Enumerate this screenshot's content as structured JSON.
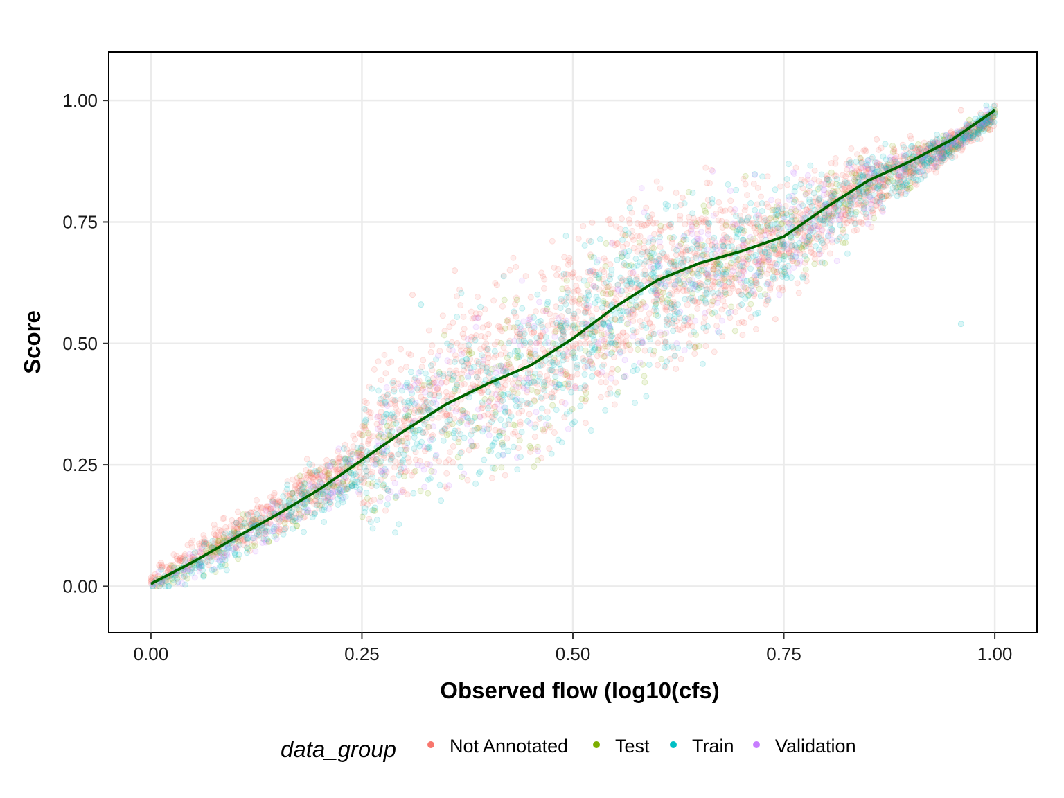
{
  "chart_data": {
    "type": "scatter",
    "title": "",
    "xlabel": "Observed flow (log10(cfs)",
    "ylabel": "Score",
    "xlim": [
      -0.05,
      1.05
    ],
    "ylim": [
      -0.095,
      1.1
    ],
    "x_ticks": [
      0,
      0.25,
      0.5,
      0.75,
      1
    ],
    "x_tick_labels": [
      "0.00",
      "0.25",
      "0.50",
      "0.75",
      "1.00"
    ],
    "y_ticks": [
      0,
      0.25,
      0.5,
      0.75,
      1
    ],
    "y_tick_labels": [
      "0.00",
      "0.25",
      "0.50",
      "0.75",
      "1.00"
    ],
    "grid": true,
    "legend": {
      "title": "data_group",
      "position": "bottom",
      "entries": [
        {
          "name": "Not Annotated",
          "color": "#F8766D"
        },
        {
          "name": "Test",
          "color": "#7CAE00"
        },
        {
          "name": "Train",
          "color": "#00BFC4"
        },
        {
          "name": "Validation",
          "color": "#C77CFF"
        }
      ]
    },
    "point_alpha": 0.15,
    "series": [
      {
        "name": "Not Annotated",
        "color": "#F8766D",
        "x": [
          0.0,
          0.02,
          0.05,
          0.08,
          0.1,
          0.12,
          0.15,
          0.18,
          0.2,
          0.22,
          0.25,
          0.27,
          0.3,
          0.32,
          0.35,
          0.38,
          0.4,
          0.42,
          0.45,
          0.48,
          0.5,
          0.52,
          0.55,
          0.58,
          0.6,
          0.62,
          0.65,
          0.68,
          0.7,
          0.72,
          0.75,
          0.78,
          0.8,
          0.82,
          0.85,
          0.88,
          0.9,
          0.92,
          0.95,
          0.97,
          0.99,
          1.0,
          0.31,
          0.36,
          0.41,
          0.57,
          0.63,
          0.74,
          0.86,
          0.96
        ],
        "y": [
          0.01,
          0.03,
          0.06,
          0.09,
          0.1,
          0.13,
          0.17,
          0.19,
          0.22,
          0.24,
          0.27,
          0.31,
          0.34,
          0.39,
          0.42,
          0.44,
          0.47,
          0.45,
          0.5,
          0.49,
          0.52,
          0.5,
          0.55,
          0.58,
          0.6,
          0.58,
          0.62,
          0.6,
          0.64,
          0.66,
          0.7,
          0.75,
          0.78,
          0.8,
          0.83,
          0.86,
          0.88,
          0.9,
          0.92,
          0.95,
          0.97,
          0.99,
          0.6,
          0.65,
          0.62,
          0.72,
          0.8,
          0.55,
          0.92,
          0.98
        ]
      },
      {
        "name": "Test",
        "color": "#7CAE00",
        "x": [
          0.02,
          0.1,
          0.2,
          0.28,
          0.33,
          0.38,
          0.45,
          0.52,
          0.6,
          0.68,
          0.75,
          0.82,
          0.9,
          0.97,
          1.0
        ],
        "y": [
          0.02,
          0.11,
          0.2,
          0.33,
          0.42,
          0.48,
          0.48,
          0.52,
          0.62,
          0.63,
          0.68,
          0.78,
          0.82,
          0.96,
          0.98
        ]
      },
      {
        "name": "Train",
        "color": "#00BFC4",
        "x": [
          0.01,
          0.06,
          0.12,
          0.18,
          0.24,
          0.3,
          0.36,
          0.42,
          0.48,
          0.55,
          0.62,
          0.7,
          0.78,
          0.86,
          0.93,
          0.99,
          0.32,
          0.7,
          0.96
        ],
        "y": [
          0.01,
          0.05,
          0.12,
          0.17,
          0.23,
          0.27,
          0.32,
          0.36,
          0.41,
          0.5,
          0.55,
          0.6,
          0.72,
          0.82,
          0.9,
          0.99,
          0.58,
          0.58,
          0.54
        ]
      },
      {
        "name": "Validation",
        "color": "#C77CFF",
        "x": [
          0.03,
          0.15,
          0.27,
          0.4,
          0.53,
          0.66,
          0.8,
          0.92,
          0.99
        ],
        "y": [
          0.03,
          0.15,
          0.29,
          0.38,
          0.5,
          0.64,
          0.78,
          0.9,
          0.98
        ]
      }
    ],
    "trend_line": {
      "color": "#006400",
      "x": [
        0,
        0.05,
        0.1,
        0.15,
        0.2,
        0.25,
        0.3,
        0.35,
        0.4,
        0.45,
        0.5,
        0.55,
        0.6,
        0.65,
        0.7,
        0.75,
        0.8,
        0.85,
        0.9,
        0.95,
        1.0
      ],
      "y": [
        0.005,
        0.05,
        0.1,
        0.148,
        0.2,
        0.26,
        0.32,
        0.375,
        0.418,
        0.455,
        0.51,
        0.575,
        0.63,
        0.665,
        0.69,
        0.72,
        0.78,
        0.835,
        0.875,
        0.92,
        0.98
      ]
    }
  }
}
